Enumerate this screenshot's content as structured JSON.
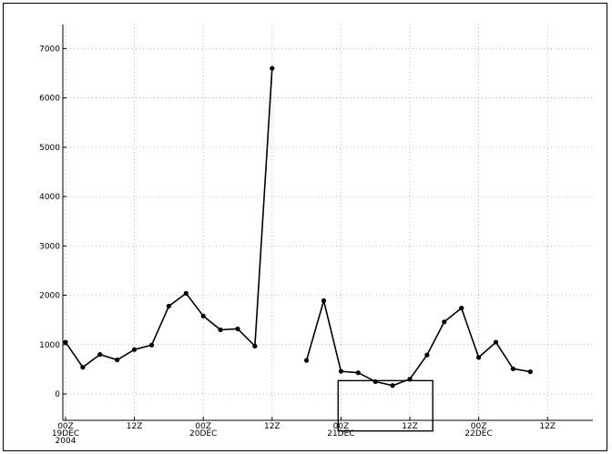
{
  "chart_data": {
    "type": "line",
    "title": "",
    "xlabel": "",
    "ylabel": "",
    "ylim": [
      -500,
      7500
    ],
    "y_ticks": [
      0,
      1000,
      2000,
      3000,
      4000,
      5000,
      6000,
      7000
    ],
    "y_tick_labels": [
      "0",
      "1000",
      "2000",
      "3000",
      "4000",
      "5000",
      "6000",
      "7000"
    ],
    "xlim_hours": [
      0,
      84
    ],
    "x_ticks": [
      {
        "hour": 0,
        "lines": [
          "00Z",
          "19DEC",
          "2004"
        ]
      },
      {
        "hour": 12,
        "lines": [
          "12Z"
        ]
      },
      {
        "hour": 24,
        "lines": [
          "00Z",
          "20DEC"
        ]
      },
      {
        "hour": 36,
        "lines": [
          "12Z"
        ]
      },
      {
        "hour": 48,
        "lines": [
          "00Z",
          "21DEC"
        ]
      },
      {
        "hour": 60,
        "lines": [
          "12Z"
        ]
      },
      {
        "hour": 72,
        "lines": [
          "00Z",
          "22DEC"
        ]
      },
      {
        "hour": 84,
        "lines": [
          "12Z"
        ]
      }
    ],
    "grid": true,
    "series": [
      {
        "segments": [
          [
            {
              "x": 0,
              "y": 1050
            },
            {
              "x": 3,
              "y": 540
            },
            {
              "x": 6,
              "y": 800
            },
            {
              "x": 9,
              "y": 690
            },
            {
              "x": 12,
              "y": 900
            },
            {
              "x": 15,
              "y": 990
            },
            {
              "x": 18,
              "y": 1780
            },
            {
              "x": 21,
              "y": 2040
            },
            {
              "x": 24,
              "y": 1580
            },
            {
              "x": 27,
              "y": 1300
            },
            {
              "x": 30,
              "y": 1320
            },
            {
              "x": 33,
              "y": 970
            },
            {
              "x": 36,
              "y": 6600
            }
          ],
          [
            {
              "x": 42,
              "y": 680
            },
            {
              "x": 45,
              "y": 1890
            },
            {
              "x": 48,
              "y": 460
            },
            {
              "x": 51,
              "y": 430
            },
            {
              "x": 54,
              "y": 250
            },
            {
              "x": 57,
              "y": 170
            },
            {
              "x": 60,
              "y": 300
            },
            {
              "x": 63,
              "y": 790
            },
            {
              "x": 66,
              "y": 1460
            },
            {
              "x": 69,
              "y": 1740
            },
            {
              "x": 72,
              "y": 740
            },
            {
              "x": 75,
              "y": 1050
            },
            {
              "x": 78,
              "y": 510
            },
            {
              "x": 81,
              "y": 450
            }
          ]
        ]
      }
    ],
    "annotations": [
      {
        "type": "box",
        "x0_hour": 47.5,
        "x1_hour": 64,
        "y0": -750,
        "y1": 270
      }
    ]
  }
}
